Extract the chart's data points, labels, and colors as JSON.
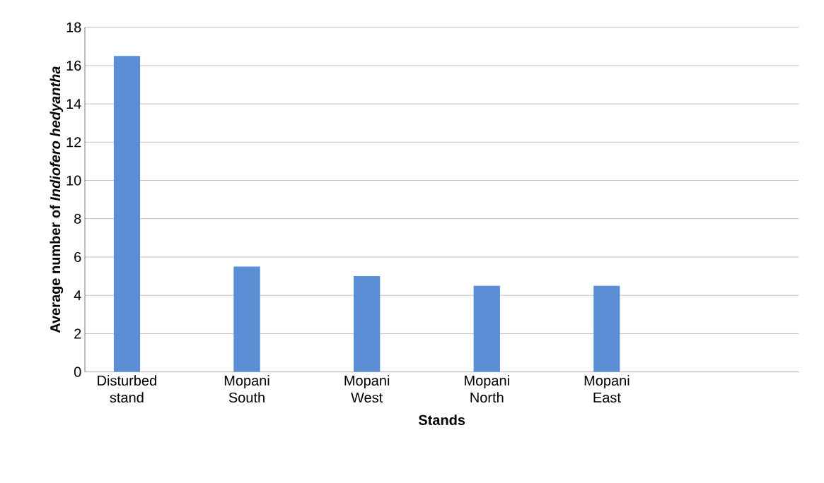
{
  "chart_data": {
    "type": "bar",
    "xlabel": "Stands",
    "ylabel": "Average number of *Indiofero hedyantha*",
    "categories": [
      "Disturbed stand",
      "Mopani South",
      "Mopani West",
      "Mopani North",
      "Mopani East"
    ],
    "values": [
      16.5,
      5.5,
      5,
      4.5,
      4.5
    ],
    "color": "#5b8ed4",
    "ylim": [
      0,
      18
    ],
    "yticks": [
      0,
      2,
      4,
      6,
      8,
      10,
      12,
      14,
      16,
      18
    ],
    "grid": "y"
  }
}
